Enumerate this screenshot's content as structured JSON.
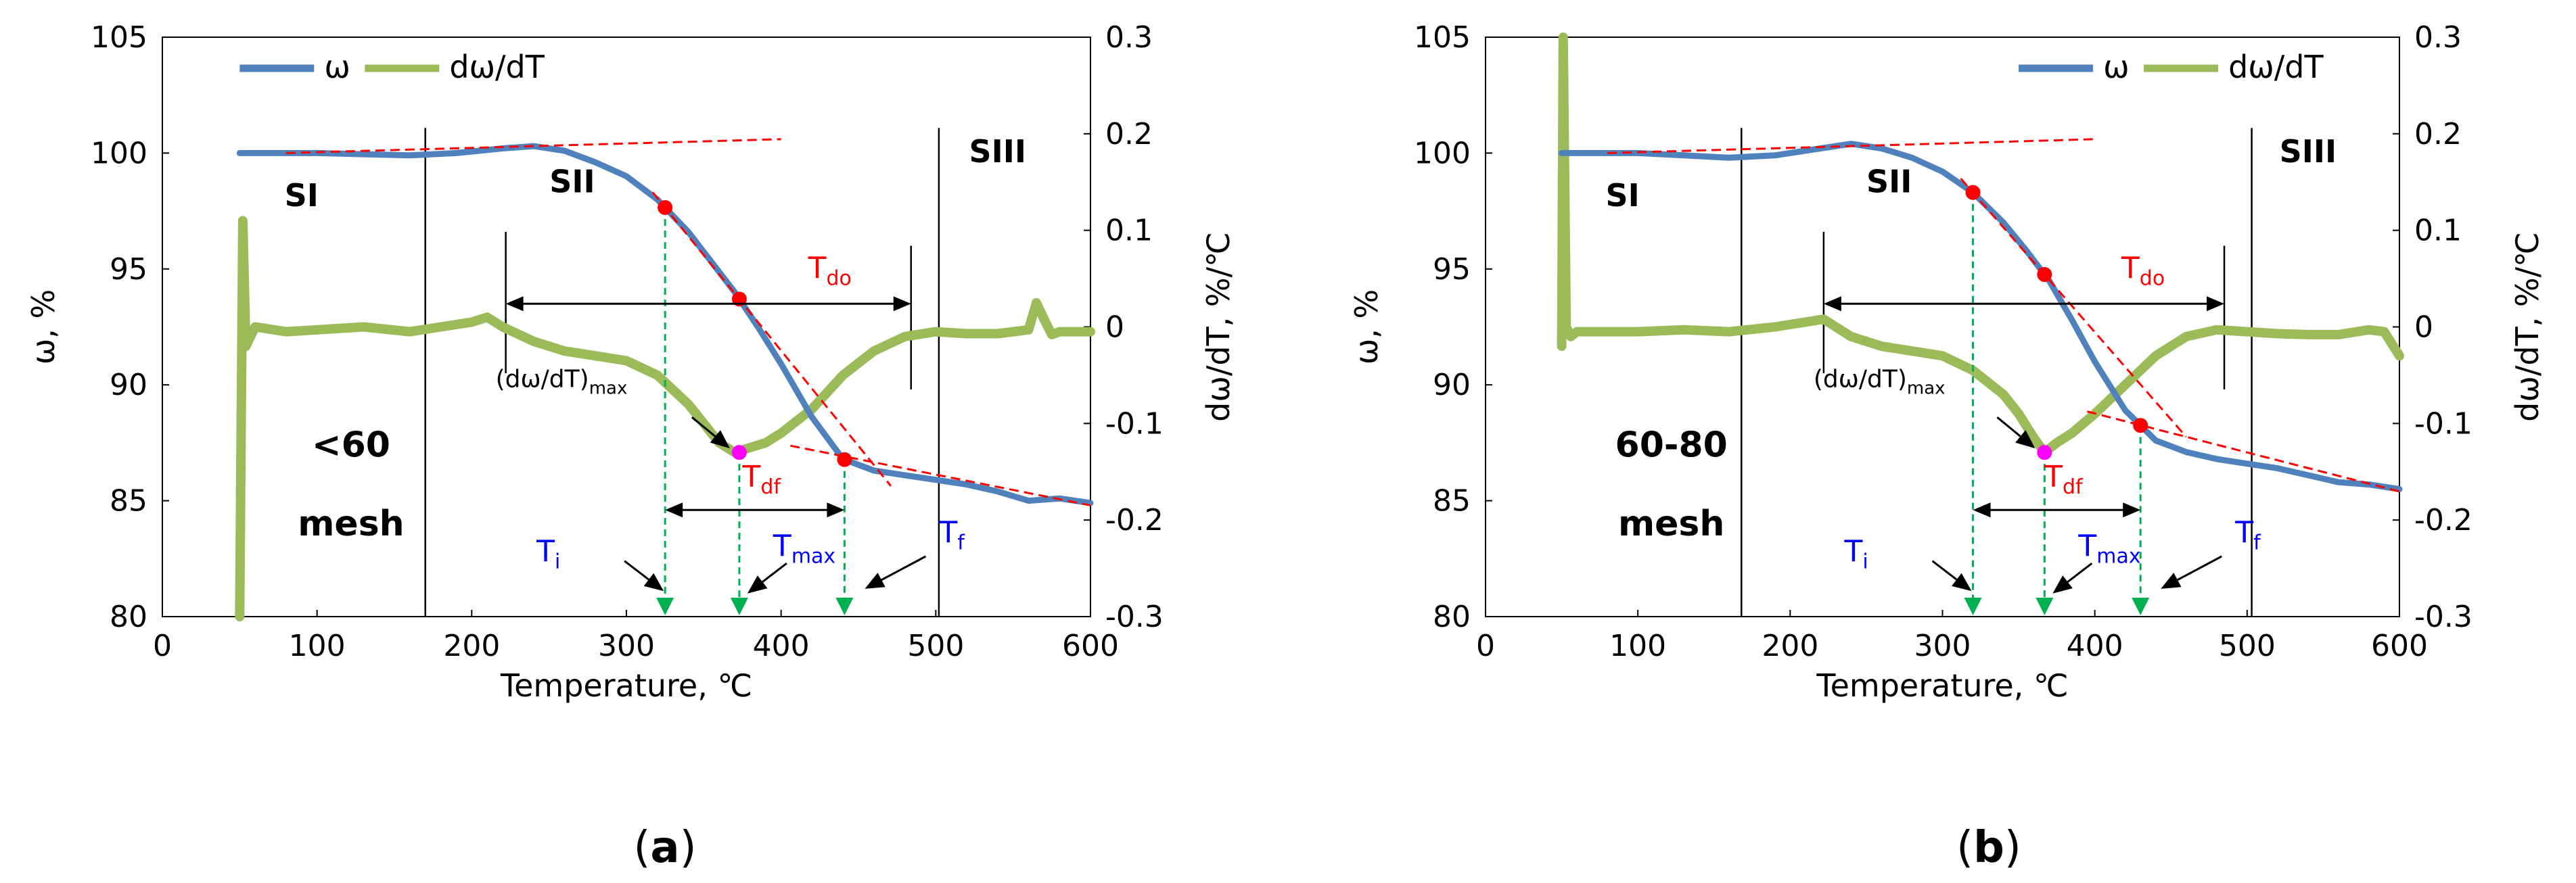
{
  "colors": {
    "omega": "#4f81bd",
    "domega": "#9bbb59",
    "tangent": "#ff0000",
    "point": "#ff0000",
    "dtg_peak": "#ff00ff",
    "drop": "#00b050",
    "label_red": "#ff0000",
    "label_blue": "#0000ff"
  },
  "chart_data": [
    {
      "panel": "a",
      "type": "line",
      "caption": "(a)",
      "caption_letter": "a",
      "xlabel": "Temperature, ℃",
      "ylabel_left": "ω, %",
      "ylabel_right": "dω/dT, %/℃",
      "xlim": [
        0,
        600
      ],
      "ylim_left": [
        80,
        105
      ],
      "ylim_right": [
        -0.3,
        0.3
      ],
      "xticks": [
        "0",
        "100",
        "200",
        "300",
        "400",
        "500",
        "600"
      ],
      "yticks_left": [
        "80",
        "85",
        "90",
        "95",
        "100",
        "105"
      ],
      "yticks_right": [
        "-0.3",
        "-0.2",
        "-0.1",
        "0",
        "0.1",
        "0.2",
        "0.3"
      ],
      "legend": [
        "ω",
        "dω/dT"
      ],
      "region_labels": [
        "SI",
        "SII",
        "SIII"
      ],
      "mesh_label": [
        "<60",
        "mesh"
      ],
      "boundaries_T": [
        170,
        502
      ],
      "Ti": 325,
      "Tmax": 373,
      "Tf": 441,
      "Tdo_range": [
        222,
        484
      ],
      "Tdf_range": [
        325,
        441
      ],
      "dtg_min": -0.13,
      "annotation_labels": {
        "Ti": [
          "T",
          "i"
        ],
        "Tmax": [
          "T",
          "max"
        ],
        "Tf": [
          "T",
          "f"
        ],
        "Tdo": [
          "T",
          "do"
        ],
        "Tdf": [
          "T",
          "df"
        ],
        "dtg_max": [
          "(dω/dT)",
          "max"
        ]
      },
      "series": [
        {
          "name": "ω",
          "axis": "left",
          "x": [
            50,
            70,
            100,
            130,
            160,
            190,
            220,
            240,
            260,
            280,
            300,
            320,
            340,
            355,
            370,
            385,
            400,
            420,
            440,
            460,
            480,
            500,
            520,
            540,
            560,
            580,
            600
          ],
          "y": [
            100,
            100,
            100,
            99.95,
            99.9,
            100,
            100.2,
            100.3,
            100.1,
            99.6,
            99,
            98,
            96.6,
            95.3,
            94,
            92.5,
            90.9,
            88.6,
            86.8,
            86.3,
            86.1,
            85.9,
            85.7,
            85.4,
            85,
            85.1,
            84.9
          ]
        },
        {
          "name": "dω/dT",
          "axis": "right",
          "x": [
            50,
            52,
            54,
            57,
            60,
            80,
            100,
            130,
            160,
            180,
            200,
            210,
            220,
            240,
            260,
            280,
            300,
            320,
            340,
            350,
            360,
            370,
            380,
            390,
            400,
            420,
            440,
            460,
            480,
            500,
            520,
            540,
            560,
            565,
            570,
            575,
            580,
            600
          ],
          "y": [
            -0.3,
            0.11,
            -0.02,
            -0.01,
            0.0,
            -0.005,
            -0.003,
            0.0,
            -0.005,
            0.0,
            0.005,
            0.01,
            0.0,
            -0.015,
            -0.025,
            -0.03,
            -0.035,
            -0.05,
            -0.08,
            -0.1,
            -0.12,
            -0.13,
            -0.125,
            -0.12,
            -0.11,
            -0.085,
            -0.05,
            -0.025,
            -0.01,
            -0.005,
            -0.007,
            -0.007,
            -0.003,
            0.025,
            0.008,
            -0.008,
            -0.005,
            -0.005
          ]
        }
      ]
    },
    {
      "panel": "b",
      "type": "line",
      "caption": "(b)",
      "caption_letter": "b",
      "xlabel": "Temperature, ℃",
      "ylabel_left": "ω, %",
      "ylabel_right": "dω/dT, %/℃",
      "xlim": [
        0,
        600
      ],
      "ylim_left": [
        80,
        105
      ],
      "ylim_right": [
        -0.3,
        0.3
      ],
      "xticks": [
        "0",
        "100",
        "200",
        "300",
        "400",
        "500",
        "600"
      ],
      "yticks_left": [
        "80",
        "85",
        "90",
        "95",
        "100",
        "105"
      ],
      "yticks_right": [
        "-0.3",
        "-0.2",
        "-0.1",
        "0",
        "0.1",
        "0.2",
        "0.3"
      ],
      "legend": [
        "ω",
        "dω/dT"
      ],
      "region_labels": [
        "SI",
        "SII",
        "SIII"
      ],
      "mesh_label": [
        "60-80",
        "mesh"
      ],
      "boundaries_T": [
        168,
        503
      ],
      "Ti": 320,
      "Tmax": 367,
      "Tf": 430,
      "Tdo_range": [
        222,
        485
      ],
      "Tdf_range": [
        320,
        430
      ],
      "dtg_min": -0.13,
      "annotation_labels": {
        "Ti": [
          "T",
          "i"
        ],
        "Tmax": [
          "T",
          "max"
        ],
        "Tf": [
          "T",
          "f"
        ],
        "Tdo": [
          "T",
          "do"
        ],
        "Tdf": [
          "T",
          "df"
        ],
        "dtg_max": [
          "(dω/dT)",
          "max"
        ]
      },
      "series": [
        {
          "name": "ω",
          "axis": "left",
          "x": [
            50,
            70,
            100,
            130,
            160,
            190,
            220,
            240,
            260,
            280,
            300,
            320,
            340,
            355,
            370,
            385,
            400,
            420,
            440,
            460,
            480,
            500,
            520,
            540,
            560,
            580,
            600
          ],
          "y": [
            100,
            100,
            100,
            99.9,
            99.8,
            99.9,
            100.2,
            100.4,
            100.2,
            99.8,
            99.2,
            98.3,
            97,
            95.8,
            94.5,
            92.8,
            91,
            88.9,
            87.6,
            87.1,
            86.8,
            86.6,
            86.4,
            86.1,
            85.8,
            85.7,
            85.5
          ]
        },
        {
          "name": "dω/dT",
          "axis": "right",
          "x": [
            50,
            51,
            53,
            56,
            60,
            80,
            100,
            130,
            160,
            190,
            210,
            222,
            240,
            260,
            280,
            300,
            320,
            340,
            350,
            360,
            367,
            375,
            385,
            400,
            420,
            440,
            460,
            480,
            500,
            520,
            540,
            560,
            580,
            590,
            600
          ],
          "y": [
            -0.02,
            0.3,
            0.0,
            -0.01,
            -0.005,
            -0.005,
            -0.005,
            -0.003,
            -0.005,
            0.0,
            0.005,
            0.008,
            -0.01,
            -0.02,
            -0.025,
            -0.03,
            -0.045,
            -0.07,
            -0.09,
            -0.115,
            -0.13,
            -0.12,
            -0.11,
            -0.09,
            -0.06,
            -0.03,
            -0.01,
            -0.003,
            -0.005,
            -0.007,
            -0.008,
            -0.008,
            -0.003,
            -0.005,
            -0.03
          ]
        }
      ]
    }
  ]
}
